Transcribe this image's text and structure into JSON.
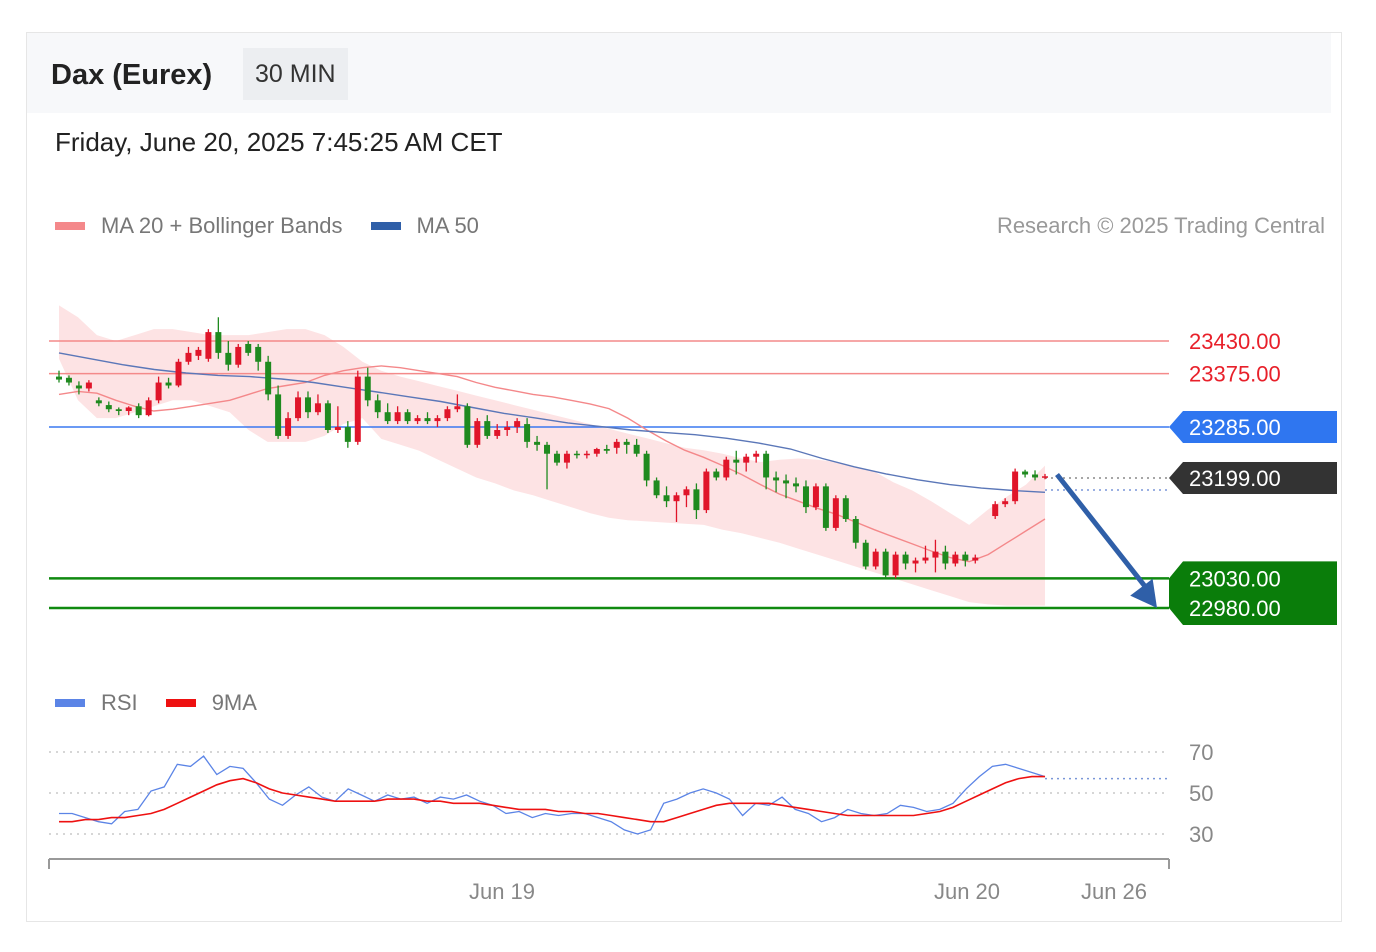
{
  "header": {
    "title": "Dax (Eurex)",
    "interval": "30 MIN",
    "datetime": "Friday, June 20, 2025 7:45:25 AM CET"
  },
  "legend": {
    "items": [
      {
        "label": "MA 20 + Bollinger Bands",
        "color": "#f4888a"
      },
      {
        "label": "MA 50",
        "color": "#2f5fa8"
      }
    ],
    "credit": "Research © 2025 Trading Central"
  },
  "rsi_legend": {
    "items": [
      {
        "label": "RSI",
        "color": "#5b84e6"
      },
      {
        "label": "9MA",
        "color": "#ee1111"
      }
    ]
  },
  "chart_data": [
    {
      "type": "candlestick",
      "title": "Dax (Eurex)",
      "timeframe": "30 MIN",
      "x_tick_labels": [
        "Jun 19",
        "Jun 20",
        "Jun 26"
      ],
      "ylim": [
        22950,
        23480
      ],
      "candles": [
        [
          23370,
          23380,
          23360,
          23365
        ],
        [
          23368,
          23372,
          23355,
          23360
        ],
        [
          23355,
          23362,
          23340,
          23350
        ],
        [
          23350,
          23364,
          23345,
          23360
        ],
        [
          23330,
          23335,
          23320,
          23325
        ],
        [
          23322,
          23328,
          23310,
          23315
        ],
        [
          23315,
          23318,
          23305,
          23312
        ],
        [
          23312,
          23320,
          23305,
          23318
        ],
        [
          23320,
          23325,
          23300,
          23305
        ],
        [
          23305,
          23335,
          23303,
          23330
        ],
        [
          23330,
          23370,
          23325,
          23360
        ],
        [
          23360,
          23368,
          23350,
          23355
        ],
        [
          23355,
          23400,
          23352,
          23395
        ],
        [
          23395,
          23420,
          23390,
          23410
        ],
        [
          23405,
          23420,
          23398,
          23415
        ],
        [
          23400,
          23450,
          23395,
          23445
        ],
        [
          23445,
          23470,
          23400,
          23410
        ],
        [
          23410,
          23430,
          23380,
          23390
        ],
        [
          23390,
          23425,
          23385,
          23420
        ],
        [
          23425,
          23430,
          23405,
          23410
        ],
        [
          23420,
          23425,
          23380,
          23395
        ],
        [
          23395,
          23405,
          23330,
          23340
        ],
        [
          23340,
          23355,
          23265,
          23270
        ],
        [
          23270,
          23310,
          23265,
          23300
        ],
        [
          23300,
          23345,
          23295,
          23335
        ],
        [
          23335,
          23345,
          23300,
          23310
        ],
        [
          23310,
          23340,
          23305,
          23325
        ],
        [
          23325,
          23330,
          23275,
          23280
        ],
        [
          23280,
          23320,
          23275,
          23285
        ],
        [
          23285,
          23295,
          23250,
          23260
        ],
        [
          23260,
          23380,
          23255,
          23370
        ],
        [
          23370,
          23385,
          23320,
          23330
        ],
        [
          23330,
          23340,
          23300,
          23310
        ],
        [
          23310,
          23325,
          23290,
          23295
        ],
        [
          23295,
          23320,
          23290,
          23310
        ],
        [
          23310,
          23315,
          23290,
          23295
        ],
        [
          23295,
          23305,
          23290,
          23300
        ],
        [
          23300,
          23310,
          23290,
          23295
        ],
        [
          23295,
          23305,
          23285,
          23300
        ],
        [
          23300,
          23320,
          23295,
          23315
        ],
        [
          23315,
          23340,
          23310,
          23320
        ],
        [
          23320,
          23325,
          23250,
          23255
        ],
        [
          23255,
          23300,
          23250,
          23295
        ],
        [
          23295,
          23305,
          23265,
          23270
        ],
        [
          23270,
          23290,
          23265,
          23280
        ],
        [
          23280,
          23295,
          23270,
          23285
        ],
        [
          23285,
          23300,
          23275,
          23295
        ],
        [
          23290,
          23300,
          23250,
          23260
        ],
        [
          23260,
          23270,
          23245,
          23255
        ],
        [
          23255,
          23260,
          23180,
          23240
        ],
        [
          23240,
          23245,
          23220,
          23225
        ],
        [
          23225,
          23245,
          23215,
          23240
        ],
        [
          23240,
          23245,
          23232,
          23238
        ],
        [
          23238,
          23245,
          23232,
          23240
        ],
        [
          23240,
          23250,
          23235,
          23248
        ],
        [
          23248,
          23255,
          23240,
          23245
        ],
        [
          23250,
          23265,
          23240,
          23260
        ],
        [
          23260,
          23265,
          23240,
          23255
        ],
        [
          23255,
          23265,
          23235,
          23240
        ],
        [
          23240,
          23245,
          23185,
          23195
        ],
        [
          23195,
          23200,
          23165,
          23170
        ],
        [
          23170,
          23185,
          23150,
          23160
        ],
        [
          23160,
          23175,
          23125,
          23170
        ],
        [
          23170,
          23185,
          23150,
          23180
        ],
        [
          23180,
          23190,
          23130,
          23145
        ],
        [
          23145,
          23215,
          23140,
          23210
        ],
        [
          23210,
          23215,
          23195,
          23200
        ],
        [
          23200,
          23235,
          23195,
          23230
        ],
        [
          23230,
          23245,
          23205,
          23225
        ],
        [
          23225,
          23240,
          23210,
          23235
        ],
        [
          23235,
          23245,
          23225,
          23240
        ],
        [
          23240,
          23245,
          23180,
          23200
        ],
        [
          23200,
          23210,
          23175,
          23195
        ],
        [
          23195,
          23205,
          23165,
          23190
        ],
        [
          23190,
          23200,
          23175,
          23185
        ],
        [
          23185,
          23195,
          23140,
          23150
        ],
        [
          23150,
          23190,
          23145,
          23185
        ],
        [
          23185,
          23190,
          23110,
          23115
        ],
        [
          23115,
          23170,
          23110,
          23165
        ],
        [
          23165,
          23170,
          23125,
          23130
        ],
        [
          23130,
          23135,
          23080,
          23090
        ],
        [
          23090,
          23095,
          23045,
          23050
        ],
        [
          23050,
          23080,
          23045,
          23075
        ],
        [
          23075,
          23080,
          23030,
          23035
        ],
        [
          23035,
          23075,
          23030,
          23070
        ],
        [
          23070,
          23075,
          23045,
          23055
        ],
        [
          23055,
          23065,
          23040,
          23060
        ],
        [
          23060,
          23085,
          23055,
          23065
        ],
        [
          23065,
          23095,
          23040,
          23075
        ],
        [
          23075,
          23085,
          23045,
          23055
        ],
        [
          23055,
          23075,
          23050,
          23070
        ],
        [
          23070,
          23075,
          23050,
          23060
        ],
        [
          23060,
          23070,
          23055,
          23065
        ],
        null,
        [
          23135,
          23160,
          23130,
          23155
        ],
        [
          23155,
          23165,
          23150,
          23160
        ],
        [
          23160,
          23215,
          23155,
          23210
        ],
        [
          23210,
          23213,
          23200,
          23205
        ],
        [
          23205,
          23212,
          23195,
          23200
        ],
        [
          23200,
          23206,
          23197,
          23202
        ]
      ],
      "ma20": [
        23340,
        23345,
        23342,
        23330,
        23320,
        23312,
        23315,
        23320,
        23325,
        23330,
        23340,
        23350,
        23355,
        23360,
        23372,
        23380,
        23385,
        23388,
        23385,
        23380,
        23375,
        23370,
        23360,
        23352,
        23346,
        23340,
        23336,
        23330,
        23324,
        23316,
        23300,
        23280,
        23262,
        23246,
        23234,
        23220,
        23205,
        23188,
        23172,
        23160,
        23148,
        23138,
        23125,
        23112,
        23100,
        23088,
        23076,
        23065,
        23058,
        23070,
        23090,
        23110,
        23130
      ],
      "bb_upper": [
        23490,
        23470,
        23440,
        23430,
        23440,
        23450,
        23450,
        23445,
        23440,
        23440,
        23440,
        23445,
        23450,
        23450,
        23440,
        23420,
        23395,
        23380,
        23370,
        23362,
        23354,
        23346,
        23338,
        23330,
        23322,
        23314,
        23306,
        23298,
        23290,
        23282,
        23274,
        23266,
        23258,
        23250,
        23246,
        23240,
        23232,
        23226,
        23230,
        23232,
        23230,
        23226,
        23218,
        23210,
        23192,
        23178,
        23160,
        23140,
        23120,
        23146,
        23168,
        23188,
        23220
      ],
      "bb_lower": [
        23400,
        23330,
        23300,
        23300,
        23310,
        23320,
        23330,
        23330,
        23320,
        23310,
        23280,
        23260,
        23260,
        23260,
        23270,
        23290,
        23300,
        23265,
        23255,
        23245,
        23230,
        23215,
        23200,
        23190,
        23178,
        23170,
        23160,
        23150,
        23140,
        23132,
        23128,
        23126,
        23124,
        23122,
        23120,
        23112,
        23106,
        23098,
        23090,
        23080,
        23070,
        23060,
        23050,
        23040,
        23030,
        23020,
        23010,
        23000,
        22990,
        22986,
        22984,
        22984,
        22984
      ],
      "ma50": [
        23410,
        23400,
        23390,
        23382,
        23376,
        23372,
        23370,
        23366,
        23360,
        23352,
        23344,
        23336,
        23328,
        23318,
        23308,
        23300,
        23292,
        23286,
        23280,
        23276,
        23272,
        23266,
        23258,
        23248,
        23232,
        23218,
        23206,
        23196,
        23188,
        23182,
        23178,
        23175
      ],
      "levels": [
        {
          "value": 23430.0,
          "label": "23430.00",
          "color": "#f07070",
          "style": "resistance"
        },
        {
          "value": 23375.0,
          "label": "23375.00",
          "color": "#f07070",
          "style": "resistance"
        },
        {
          "value": 23285.0,
          "label": "23285.00",
          "color": "#3a78f0",
          "style": "pivot"
        },
        {
          "value": 23199.0,
          "label": "23199.00",
          "color": "#333333",
          "style": "last"
        },
        {
          "value": 23030.0,
          "label": "23030.00",
          "color": "#108a10",
          "style": "support"
        },
        {
          "value": 22980.0,
          "label": "22980.00",
          "color": "#108a10",
          "style": "support"
        }
      ],
      "forecast_arrow": {
        "from": 23205,
        "to": 22980,
        "color": "#2f5fa8"
      }
    },
    {
      "type": "line",
      "series": [
        {
          "name": "RSI",
          "color": "#5b84e6",
          "values": [
            40,
            40,
            38,
            36,
            35,
            41,
            42,
            51,
            53,
            64,
            63,
            68,
            59,
            63,
            62,
            55,
            47,
            44,
            49,
            53,
            48,
            46,
            52,
            49,
            46,
            49,
            47,
            48,
            45,
            48,
            47,
            49,
            46,
            44,
            40,
            41,
            38,
            40,
            39,
            40,
            40,
            38,
            36,
            32,
            30,
            32,
            45,
            47,
            50,
            52,
            50,
            47,
            39,
            45,
            44,
            48,
            42,
            40,
            36,
            38,
            42,
            40,
            39,
            40,
            44,
            43,
            41,
            42,
            45,
            52,
            58,
            63,
            64,
            62,
            60,
            58
          ]
        },
        {
          "name": "9MA",
          "color": "#ee1111",
          "values": [
            36,
            36,
            37,
            37,
            38,
            38,
            39,
            40,
            42,
            45,
            48,
            51,
            54,
            56,
            57,
            55,
            52,
            50,
            49,
            48,
            47,
            46,
            46,
            46,
            46,
            47,
            47,
            47,
            46,
            46,
            45,
            45,
            45,
            44,
            43,
            42,
            42,
            42,
            41,
            41,
            40,
            40,
            39,
            38,
            37,
            36,
            36,
            38,
            40,
            42,
            44,
            45,
            45,
            45,
            45,
            44,
            43,
            42,
            41,
            40,
            39,
            39,
            39,
            39,
            39,
            39,
            40,
            41,
            43,
            46,
            49,
            52,
            55,
            57,
            58,
            58
          ]
        }
      ],
      "levels": [
        70,
        50,
        30
      ],
      "ylim": [
        24,
        76
      ]
    }
  ]
}
